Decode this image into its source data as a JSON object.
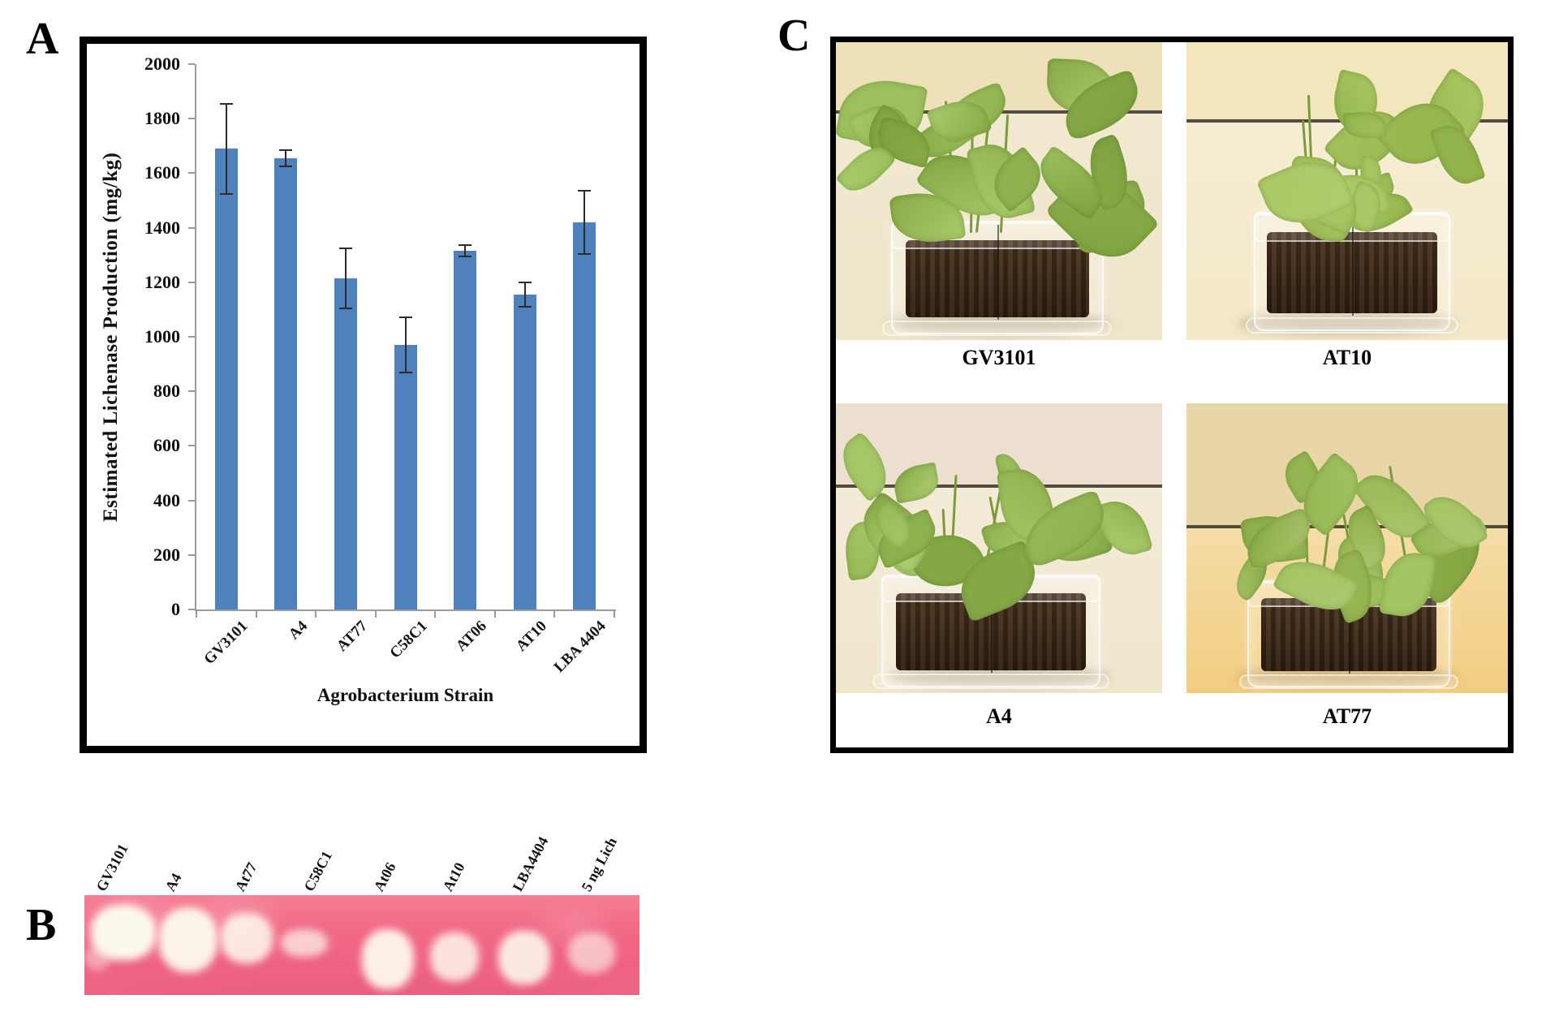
{
  "figure": {
    "panel_a_letter": "A",
    "panel_b_letter": "B",
    "panel_c_letter": "C"
  },
  "chart_data": {
    "type": "bar",
    "title": "",
    "xlabel": "Agrobacterium Strain",
    "ylabel": "Estimated Lichenase Production (mg/kg)",
    "categories": [
      "GV3101",
      "A4",
      "AT77",
      "C58C1",
      "AT06",
      "AT10",
      "LBA 4404"
    ],
    "values": [
      1690,
      1655,
      1215,
      970,
      1315,
      1155,
      1420
    ],
    "errors": [
      165,
      30,
      110,
      100,
      20,
      45,
      115
    ],
    "ylim": [
      0,
      2000
    ],
    "yticks": [
      0,
      200,
      400,
      600,
      800,
      1000,
      1200,
      1400,
      1600,
      1800,
      2000
    ],
    "bar_color": "#4f81bd",
    "grid": false,
    "legend": null
  },
  "panel_b": {
    "lanes": [
      "GV3101",
      "A4",
      "At77",
      "C58C1",
      "At06",
      "At10",
      "LBA4404",
      "5 ng Lich"
    ]
  },
  "panel_c": {
    "photos": [
      {
        "label": "GV3101"
      },
      {
        "label": "AT10"
      },
      {
        "label": "A4"
      },
      {
        "label": "AT77"
      }
    ]
  }
}
